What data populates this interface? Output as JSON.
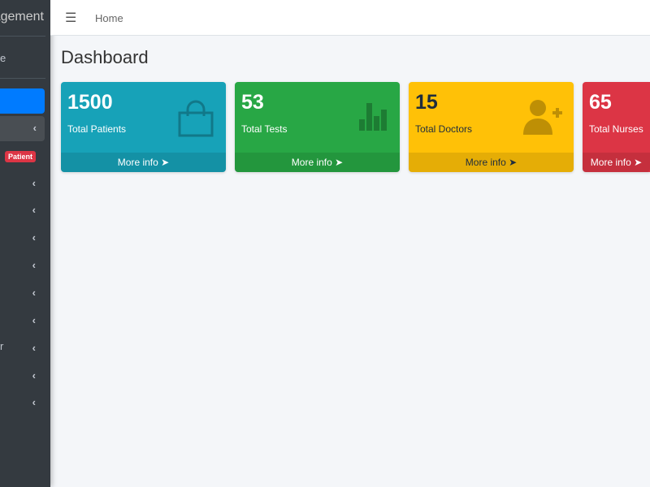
{
  "sidebar": {
    "brand": "agement",
    "user": "e",
    "badge": "Patient",
    "item_fragment": "r"
  },
  "topbar": {
    "home": "Home"
  },
  "page_title": "Dashboard",
  "cards": [
    {
      "value": "1500",
      "label": "Total Patients",
      "more": "More info",
      "color": "#17a2b8",
      "icon": "shopping-bag-icon"
    },
    {
      "value": "53",
      "label": "Total Tests",
      "more": "More info",
      "color": "#28a745",
      "icon": "bar-chart-icon"
    },
    {
      "value": "15",
      "label": "Total Doctors",
      "more": "More info",
      "color": "#ffc107",
      "icon": "user-plus-icon"
    },
    {
      "value": "65",
      "label": "Total Nurses",
      "more": "More info",
      "color": "#dc3545"
    }
  ]
}
